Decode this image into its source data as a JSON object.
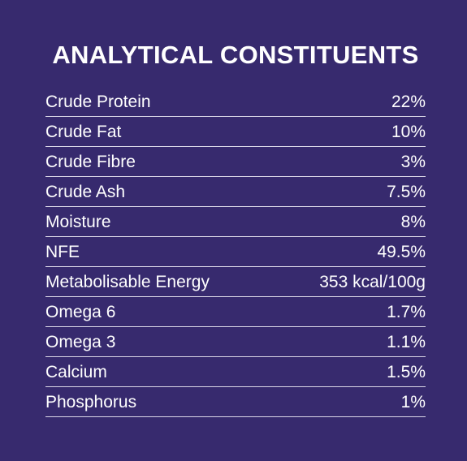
{
  "title": "ANALYTICAL CONSTITUENTS",
  "rows": [
    {
      "label": "Crude Protein",
      "value": "22%"
    },
    {
      "label": "Crude Fat",
      "value": "10%"
    },
    {
      "label": "Crude Fibre",
      "value": "3%"
    },
    {
      "label": "Crude Ash",
      "value": "7.5%"
    },
    {
      "label": "Moisture",
      "value": "8%"
    },
    {
      "label": "NFE",
      "value": "49.5%"
    },
    {
      "label": "Metabolisable Energy",
      "value": "353 kcal/100g"
    },
    {
      "label": "Omega 6",
      "value": "1.7%"
    },
    {
      "label": "Omega 3",
      "value": "1.1%"
    },
    {
      "label": "Calcium",
      "value": "1.5%"
    },
    {
      "label": "Phosphorus",
      "value": "1%"
    }
  ],
  "colors": {
    "background": "#372a6e",
    "text": "#ffffff",
    "divider": "#d9d6e6"
  }
}
